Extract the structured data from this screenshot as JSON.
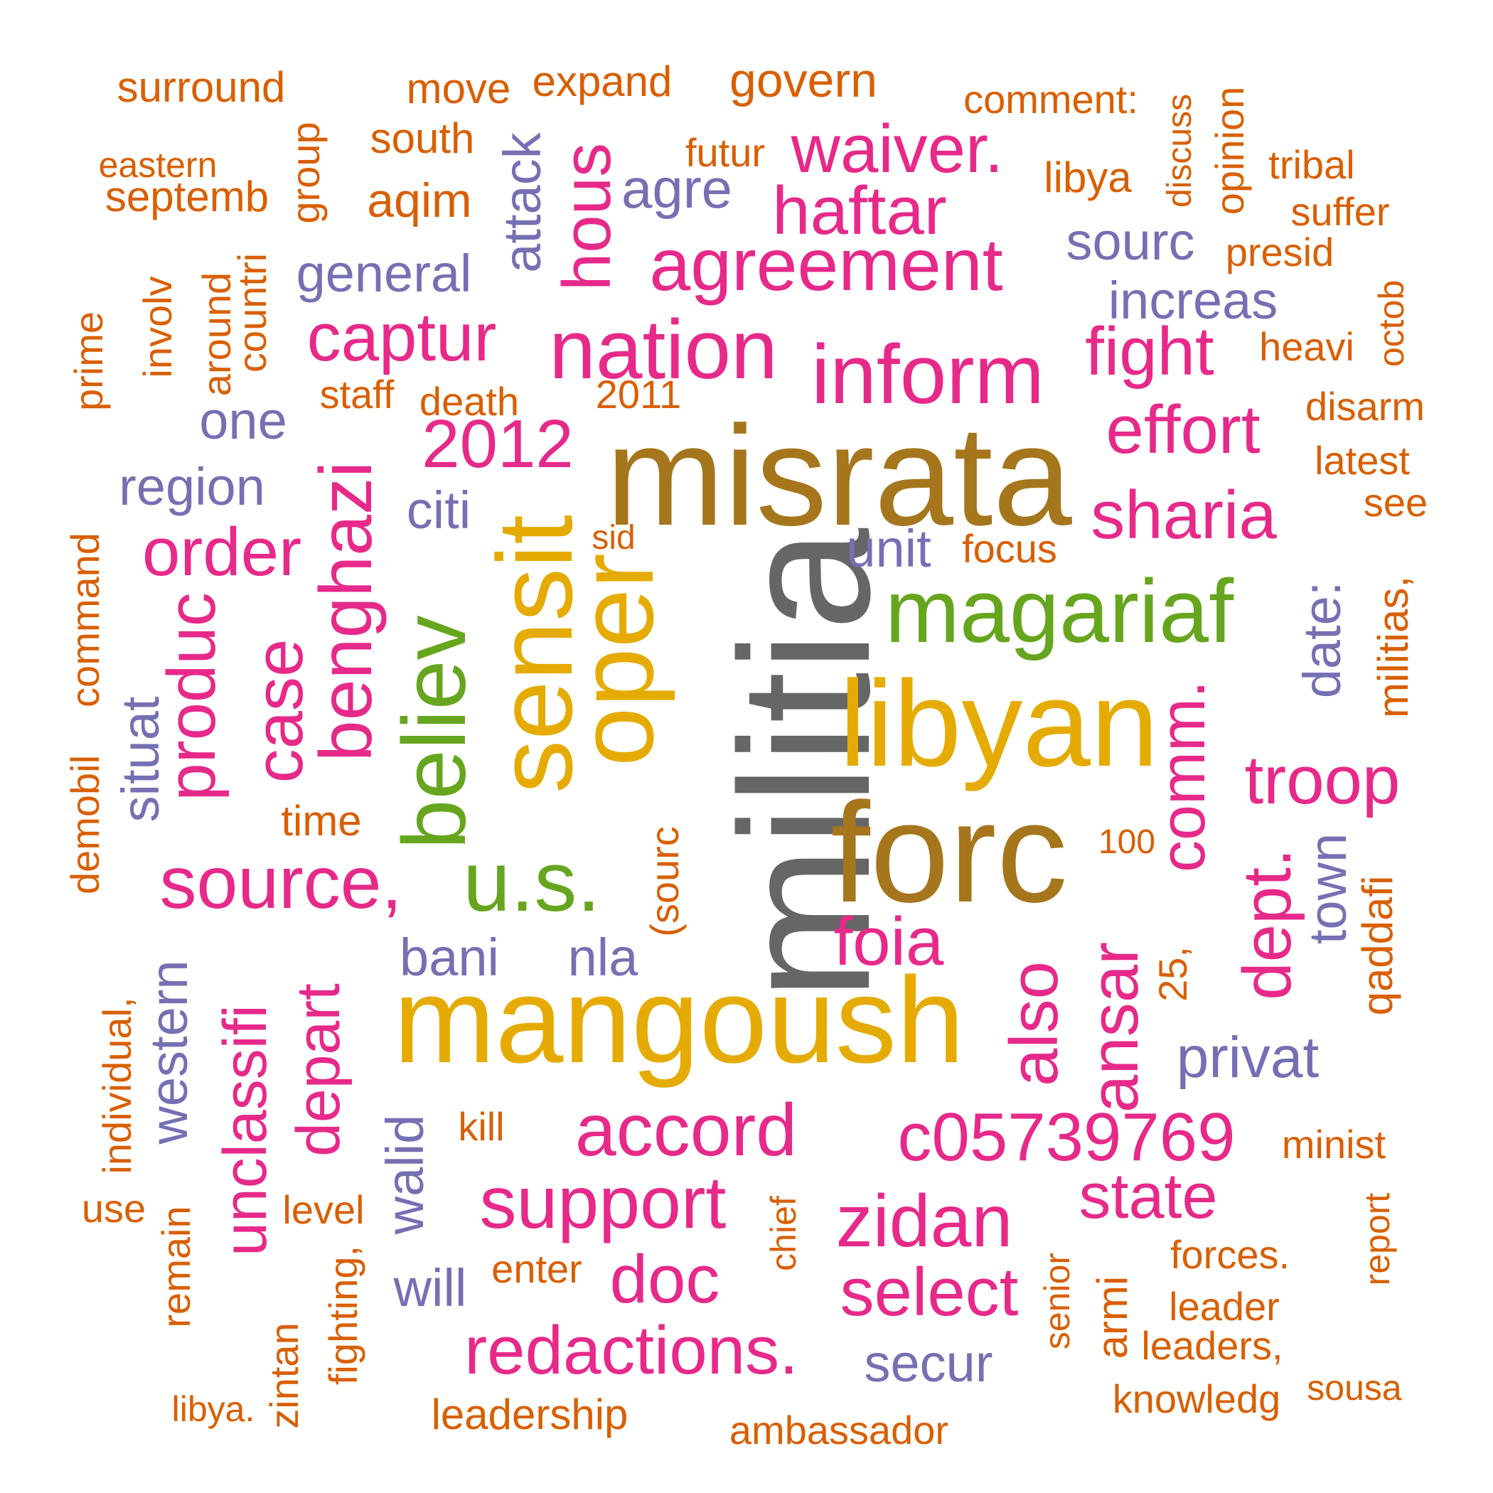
{
  "palette": {
    "orange": "#D95F02",
    "purple": "#7570B3",
    "magenta": "#E7298A",
    "green": "#66A61E",
    "gold": "#E6AB02",
    "brown": "#A6761D",
    "gray": "#666666"
  },
  "words": [
    {
      "text": "militia",
      "color": "gray"
    },
    {
      "text": "misrata",
      "color": "brown"
    },
    {
      "text": "forc",
      "color": "brown"
    },
    {
      "text": "libyan",
      "color": "gold"
    },
    {
      "text": "mangoush",
      "color": "gold"
    },
    {
      "text": "sensit",
      "color": "gold"
    },
    {
      "text": "oper",
      "color": "gold"
    },
    {
      "text": "magariaf",
      "color": "green"
    },
    {
      "text": "believ",
      "color": "green"
    },
    {
      "text": "u.s.",
      "color": "green"
    },
    {
      "text": "inform",
      "color": "magenta"
    },
    {
      "text": "nation",
      "color": "magenta"
    },
    {
      "text": "agreement",
      "color": "magenta"
    },
    {
      "text": "haftar",
      "color": "magenta"
    },
    {
      "text": "waiver.",
      "color": "magenta"
    },
    {
      "text": "hous",
      "color": "magenta"
    },
    {
      "text": "captur",
      "color": "magenta"
    },
    {
      "text": "2012",
      "color": "magenta"
    },
    {
      "text": "benghazi",
      "color": "magenta"
    },
    {
      "text": "order",
      "color": "magenta"
    },
    {
      "text": "case",
      "color": "magenta"
    },
    {
      "text": "produc",
      "color": "magenta"
    },
    {
      "text": "source,",
      "color": "magenta"
    },
    {
      "text": "fight",
      "color": "magenta"
    },
    {
      "text": "effort",
      "color": "magenta"
    },
    {
      "text": "sharia",
      "color": "magenta"
    },
    {
      "text": "comm.",
      "color": "magenta"
    },
    {
      "text": "troop",
      "color": "magenta"
    },
    {
      "text": "dept.",
      "color": "magenta"
    },
    {
      "text": "also",
      "color": "magenta"
    },
    {
      "text": "ansar",
      "color": "magenta"
    },
    {
      "text": "foia",
      "color": "magenta"
    },
    {
      "text": "accord",
      "color": "magenta"
    },
    {
      "text": "c05739769",
      "color": "magenta"
    },
    {
      "text": "support",
      "color": "magenta"
    },
    {
      "text": "zidan",
      "color": "magenta"
    },
    {
      "text": "state",
      "color": "magenta"
    },
    {
      "text": "select",
      "color": "magenta"
    },
    {
      "text": "doc",
      "color": "magenta"
    },
    {
      "text": "redactions.",
      "color": "magenta"
    },
    {
      "text": "unclassifi",
      "color": "magenta"
    },
    {
      "text": "depart",
      "color": "magenta"
    },
    {
      "text": "agre",
      "color": "purple"
    },
    {
      "text": "general",
      "color": "purple"
    },
    {
      "text": "attack",
      "color": "purple"
    },
    {
      "text": "sourc",
      "color": "purple"
    },
    {
      "text": "increas",
      "color": "purple"
    },
    {
      "text": "one",
      "color": "purple"
    },
    {
      "text": "region",
      "color": "purple"
    },
    {
      "text": "citi",
      "color": "purple"
    },
    {
      "text": "unit",
      "color": "purple"
    },
    {
      "text": "date:",
      "color": "purple"
    },
    {
      "text": "situat",
      "color": "purple"
    },
    {
      "text": "town",
      "color": "purple"
    },
    {
      "text": "bani",
      "color": "purple"
    },
    {
      "text": "nla",
      "color": "purple"
    },
    {
      "text": "privat",
      "color": "purple"
    },
    {
      "text": "western",
      "color": "purple"
    },
    {
      "text": "walid",
      "color": "purple"
    },
    {
      "text": "will",
      "color": "purple"
    },
    {
      "text": "secur",
      "color": "purple"
    },
    {
      "text": "surround",
      "color": "orange"
    },
    {
      "text": "move",
      "color": "orange"
    },
    {
      "text": "expand",
      "color": "orange"
    },
    {
      "text": "govern",
      "color": "orange"
    },
    {
      "text": "comment:",
      "color": "orange"
    },
    {
      "text": "discuss",
      "color": "orange"
    },
    {
      "text": "opinion",
      "color": "orange"
    },
    {
      "text": "eastern",
      "color": "orange"
    },
    {
      "text": "septemb",
      "color": "orange"
    },
    {
      "text": "group",
      "color": "orange"
    },
    {
      "text": "south",
      "color": "orange"
    },
    {
      "text": "aqim",
      "color": "orange"
    },
    {
      "text": "futur",
      "color": "orange"
    },
    {
      "text": "libya",
      "color": "orange"
    },
    {
      "text": "tribal",
      "color": "orange"
    },
    {
      "text": "suffer",
      "color": "orange"
    },
    {
      "text": "presid",
      "color": "orange"
    },
    {
      "text": "octob",
      "color": "orange"
    },
    {
      "text": "heavi",
      "color": "orange"
    },
    {
      "text": "disarm",
      "color": "orange"
    },
    {
      "text": "latest",
      "color": "orange"
    },
    {
      "text": "see",
      "color": "orange"
    },
    {
      "text": "militias,",
      "color": "orange"
    },
    {
      "text": "prime",
      "color": "orange"
    },
    {
      "text": "involv",
      "color": "orange"
    },
    {
      "text": "around",
      "color": "orange"
    },
    {
      "text": "countri",
      "color": "orange"
    },
    {
      "text": "staff",
      "color": "orange"
    },
    {
      "text": "death",
      "color": "orange"
    },
    {
      "text": "2011",
      "color": "orange"
    },
    {
      "text": "sid",
      "color": "orange"
    },
    {
      "text": "focus",
      "color": "orange"
    },
    {
      "text": "demobil",
      "color": "orange"
    },
    {
      "text": "command",
      "color": "orange"
    },
    {
      "text": "time",
      "color": "orange"
    },
    {
      "text": "(sourc",
      "color": "orange"
    },
    {
      "text": "100",
      "color": "orange"
    },
    {
      "text": "25,",
      "color": "orange"
    },
    {
      "text": "qaddafi",
      "color": "orange"
    },
    {
      "text": "individual,",
      "color": "orange"
    },
    {
      "text": "kill",
      "color": "orange"
    },
    {
      "text": "minist",
      "color": "orange"
    },
    {
      "text": "use",
      "color": "orange"
    },
    {
      "text": "level",
      "color": "orange"
    },
    {
      "text": "remain",
      "color": "orange"
    },
    {
      "text": "fighting,",
      "color": "orange"
    },
    {
      "text": "enter",
      "color": "orange"
    },
    {
      "text": "chief",
      "color": "orange"
    },
    {
      "text": "senior",
      "color": "orange"
    },
    {
      "text": "armi",
      "color": "orange"
    },
    {
      "text": "forces.",
      "color": "orange"
    },
    {
      "text": "leader",
      "color": "orange"
    },
    {
      "text": "leaders,",
      "color": "orange"
    },
    {
      "text": "report",
      "color": "orange"
    },
    {
      "text": "knowledg",
      "color": "orange"
    },
    {
      "text": "sousa",
      "color": "orange"
    },
    {
      "text": "zintan",
      "color": "orange"
    },
    {
      "text": "libya.",
      "color": "orange"
    },
    {
      "text": "leadership",
      "color": "orange"
    },
    {
      "text": "ambassador",
      "color": "orange"
    }
  ]
}
